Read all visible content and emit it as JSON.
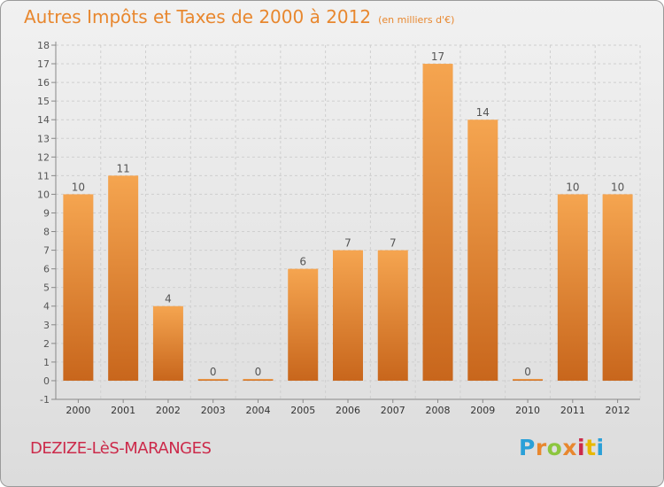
{
  "title": "Autres Impôts et Taxes de 2000 à 2012",
  "subtitle": "(en milliers d'€)",
  "location": "DEZIZE-LèS-MARANGES",
  "logo": {
    "letters": [
      "P",
      "r",
      "o",
      "x",
      "i",
      "t",
      "i"
    ],
    "colors": [
      "#2aa0d8",
      "#e8872e",
      "#8cc63e",
      "#e8872e",
      "#cc2a4a",
      "#e8b800",
      "#2aa0d8"
    ]
  },
  "colors": {
    "title": "#e8872e",
    "location": "#cc2a4a",
    "bar_light": "#f5a550",
    "bar_dark": "#c8661c",
    "axis": "#888888",
    "grid": "#cfcfcf"
  },
  "chart_data": {
    "type": "bar",
    "categories": [
      "2000",
      "2001",
      "2002",
      "2003",
      "2004",
      "2005",
      "2006",
      "2007",
      "2008",
      "2009",
      "2010",
      "2011",
      "2012"
    ],
    "values": [
      10,
      11,
      4,
      0,
      0,
      6,
      7,
      7,
      17,
      14,
      0,
      10,
      10
    ],
    "ylim": [
      -1,
      18
    ],
    "yticks": [
      -1,
      0,
      1,
      2,
      3,
      4,
      5,
      6,
      7,
      8,
      9,
      10,
      11,
      12,
      13,
      14,
      15,
      16,
      17,
      18
    ],
    "grid": true,
    "data_labels": true
  }
}
